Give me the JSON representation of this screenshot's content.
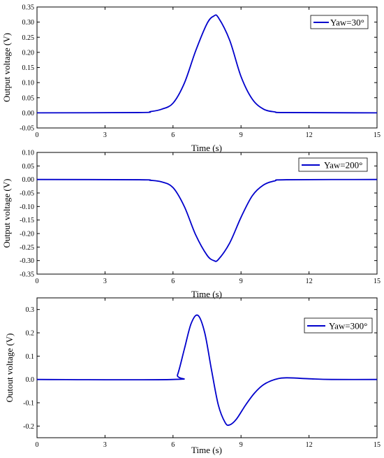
{
  "chart_data": [
    {
      "type": "line",
      "xlabel": "Time (s)",
      "ylabel": "Output voltage (V)",
      "xlim": [
        0,
        15
      ],
      "ylim": [
        -0.05,
        0.35
      ],
      "xticks": [
        "0",
        "3",
        "6",
        "9",
        "12",
        "15"
      ],
      "yticks": [
        "-0.05",
        "0.00",
        "0.05",
        "0.10",
        "0.15",
        "0.20",
        "0.25",
        "0.30",
        "0.35"
      ],
      "grid": false,
      "legend_position": "top-right",
      "color": "#0000cc",
      "series": [
        {
          "name": "Yaw=30°",
          "x": [
            0,
            4.5,
            5,
            5.5,
            6,
            6.5,
            7,
            7.5,
            7.8,
            8,
            8.5,
            9,
            9.5,
            10,
            10.5,
            11,
            15
          ],
          "y": [
            0,
            0.001,
            0.004,
            0.012,
            0.032,
            0.098,
            0.205,
            0.295,
            0.32,
            0.315,
            0.24,
            0.12,
            0.045,
            0.012,
            0.003,
            0.001,
            0
          ]
        }
      ]
    },
    {
      "type": "line",
      "xlabel": "Time (s)",
      "ylabel": "Output voltage (V)",
      "xlim": [
        0,
        15
      ],
      "ylim": [
        -0.35,
        0.1
      ],
      "xticks": [
        "0",
        "3",
        "6",
        "9",
        "12",
        "15"
      ],
      "yticks": [
        "-0.35",
        "-0.30",
        "-0.25",
        "-0.20",
        "-0.15",
        "-0.10",
        "-0.05",
        "0.00",
        "0.05",
        "0.10"
      ],
      "grid": false,
      "legend_position": "top-right",
      "color": "#0000cc",
      "series": [
        {
          "name": "Yaw=200°",
          "x": [
            0,
            4.5,
            5,
            5.5,
            6,
            6.5,
            7,
            7.5,
            7.8,
            8,
            8.5,
            9,
            9.5,
            10,
            10.5,
            11,
            15
          ],
          "y": [
            0,
            -0.001,
            -0.003,
            -0.009,
            -0.03,
            -0.1,
            -0.205,
            -0.28,
            -0.3,
            -0.296,
            -0.235,
            -0.14,
            -0.06,
            -0.02,
            -0.005,
            -0.001,
            0
          ]
        }
      ]
    },
    {
      "type": "line",
      "xlabel": "Time (s)",
      "ylabel": "Outout voltage (V)",
      "xlim": [
        0,
        15
      ],
      "ylim": [
        -0.25,
        0.35
      ],
      "xticks": [
        "0",
        "3",
        "6",
        "9",
        "12",
        "15"
      ],
      "yticks": [
        "-0.2",
        "-0.1",
        "0.0",
        "0.1",
        "0.2",
        "0.3"
      ],
      "grid": false,
      "legend_position": "top-right",
      "color": "#0000cc",
      "series": [
        {
          "name": "Yaw=300°",
          "x": [
            0,
            6,
            6.2,
            6.5,
            6.8,
            7.1,
            7.4,
            7.7,
            8.0,
            8.3,
            8.5,
            8.8,
            9.2,
            9.6,
            10,
            10.5,
            11,
            12,
            13,
            15
          ],
          "y": [
            0,
            0.0,
            0.02,
            0.13,
            0.24,
            0.275,
            0.2,
            0.04,
            -0.11,
            -0.185,
            -0.195,
            -0.17,
            -0.11,
            -0.058,
            -0.022,
            0.0,
            0.007,
            0.003,
            0,
            0
          ]
        }
      ]
    }
  ]
}
